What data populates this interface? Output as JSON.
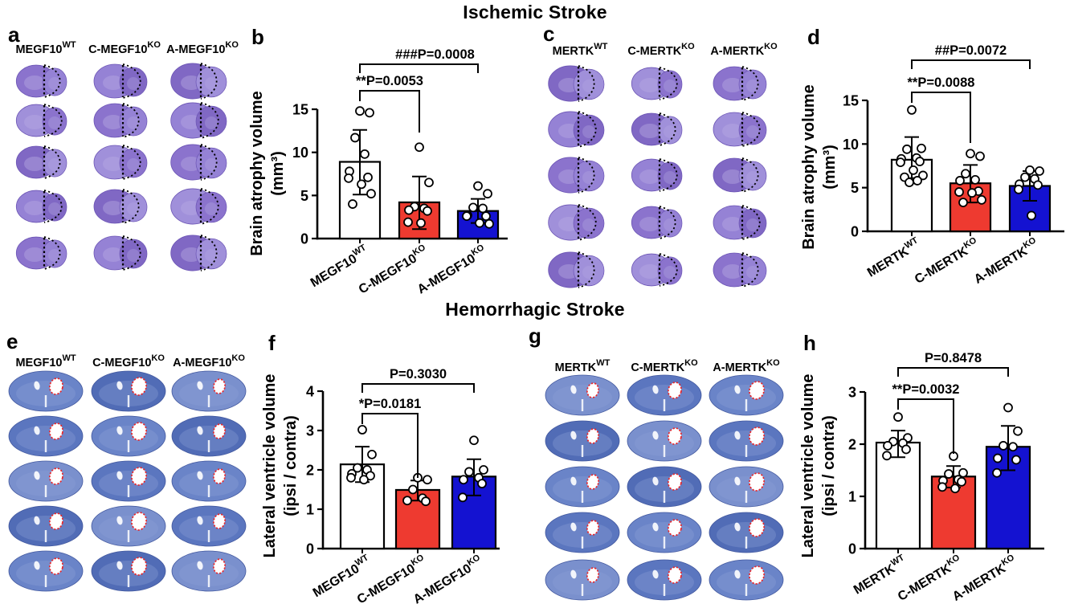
{
  "figure": {
    "title_ischemic": "Ischemic Stroke",
    "title_hemorrhagic": "Hemorrhagic Stroke"
  },
  "colors": {
    "bar_white": "#ffffff",
    "bar_red": "#ee3a30",
    "bar_blue": "#1412d1",
    "axis_black": "#000000",
    "ischemic_stain_purple": "#8b73cd",
    "hemorrhagic_stain_blue": "#5b76bf",
    "ventricle_outline_red": "#e8262a"
  },
  "image_panels": [
    {
      "letter": "a",
      "stain": "ischemic",
      "stain_color": "#8b73cd",
      "rows": 5,
      "columns": [
        {
          "base": "MEGF10",
          "sup": "WT"
        },
        {
          "base": "C-MEGF10",
          "sup": "KO"
        },
        {
          "base": "A-MEGF10",
          "sup": "KO"
        }
      ]
    },
    {
      "letter": "c",
      "stain": "ischemic",
      "stain_color": "#8b73cd",
      "rows": 5,
      "columns": [
        {
          "base": "MERTK",
          "sup": "WT"
        },
        {
          "base": "C-MERTK",
          "sup": "KO"
        },
        {
          "base": "A-MERTK",
          "sup": "KO"
        }
      ]
    },
    {
      "letter": "e",
      "stain": "hemorrhagic",
      "stain_color": "#5b76bf",
      "rows": 5,
      "columns": [
        {
          "base": "MEGF10",
          "sup": "WT"
        },
        {
          "base": "C-MEGF10",
          "sup": "KO"
        },
        {
          "base": "A-MEGF10",
          "sup": "KO"
        }
      ]
    },
    {
      "letter": "g",
      "stain": "hemorrhagic",
      "stain_color": "#5b76bf",
      "rows": 5,
      "columns": [
        {
          "base": "MERTK",
          "sup": "WT"
        },
        {
          "base": "C-MERTK",
          "sup": "KO"
        },
        {
          "base": "A-MERTK",
          "sup": "KO"
        }
      ]
    }
  ],
  "chart_data": [
    {
      "letter": "b",
      "type": "bar",
      "title": "",
      "xlabel": "",
      "ylabel": "Brain atrophy volume (mm³)",
      "ylabel_lines": [
        "Brain atrophy volume",
        "(mm³)"
      ],
      "ylim": [
        0,
        15
      ],
      "yticks": [
        0,
        5,
        10,
        15
      ],
      "grid": false,
      "categories": [
        {
          "base": "MEGF10",
          "sup": "WT"
        },
        {
          "base": "C-MEGF10",
          "sup": "KO"
        },
        {
          "base": "A-MEGF10",
          "sup": "KO"
        }
      ],
      "bars": [
        {
          "name": "MEGF10 WT",
          "color": "#ffffff",
          "value": 8.9,
          "err_low": 5.1,
          "err_high": 12.6,
          "points": [
            14.8,
            14.6,
            11.7,
            9.8,
            7.8,
            7.1,
            7.0,
            6.3,
            5.2,
            4.0
          ]
        },
        {
          "name": "C-MEGF10 KO",
          "color": "#ee3a30",
          "value": 4.2,
          "err_low": 1.1,
          "err_high": 7.2,
          "points": [
            10.6,
            6.5,
            3.7,
            3.5,
            3.3,
            3.2,
            1.9,
            1.8
          ]
        },
        {
          "name": "A-MEGF10 KO",
          "color": "#1412d1",
          "value": 3.2,
          "err_low": 1.8,
          "err_high": 4.6,
          "points": [
            6.1,
            5.2,
            3.6,
            3.5,
            2.7,
            2.6,
            2.6,
            1.8,
            1.7
          ]
        }
      ],
      "significance": [
        {
          "pair": [
            0,
            2
          ],
          "label": "###P=0.0008"
        },
        {
          "pair": [
            0,
            1
          ],
          "label": "**P=0.0053"
        }
      ]
    },
    {
      "letter": "d",
      "type": "bar",
      "title": "",
      "xlabel": "",
      "ylabel": "Brain atrophy volume (mm³)",
      "ylabel_lines": [
        "Brain atrophy volume",
        "(mm³)"
      ],
      "ylim": [
        0,
        15
      ],
      "yticks": [
        0,
        5,
        10,
        15
      ],
      "grid": false,
      "categories": [
        {
          "base": "MERTK",
          "sup": "WT"
        },
        {
          "base": "C-MERTK",
          "sup": "KO"
        },
        {
          "base": "A-MERTK",
          "sup": "KO"
        }
      ],
      "bars": [
        {
          "name": "MERTK WT",
          "color": "#ffffff",
          "value": 8.2,
          "err_low": 6.1,
          "err_high": 10.8,
          "points": [
            13.9,
            9.5,
            9.4,
            8.4,
            8.3,
            8.0,
            7.9,
            7.0,
            6.4,
            6.2,
            5.8,
            5.6
          ]
        },
        {
          "name": "C-MERTK KO",
          "color": "#ee3a30",
          "value": 5.5,
          "err_low": 3.3,
          "err_high": 7.6,
          "points": [
            8.9,
            8.6,
            6.6,
            5.9,
            5.8,
            4.6,
            4.5,
            4.4,
            3.6,
            3.3
          ]
        },
        {
          "name": "A-MERTK KO",
          "color": "#1412d1",
          "value": 5.2,
          "err_low": 3.5,
          "err_high": 6.9,
          "points": [
            7.0,
            6.9,
            6.2,
            6.0,
            5.4,
            5.3,
            4.8,
            1.8
          ]
        }
      ],
      "significance": [
        {
          "pair": [
            0,
            2
          ],
          "label": "##P=0.0072"
        },
        {
          "pair": [
            0,
            1
          ],
          "label": "**P=0.0088"
        }
      ]
    },
    {
      "letter": "f",
      "type": "bar",
      "title": "",
      "xlabel": "",
      "ylabel": "Lateral ventricle volume (ipsi / contra)",
      "ylabel_lines": [
        "Lateral ventricle volume",
        "(ipsi / contra)"
      ],
      "ylim": [
        0,
        4
      ],
      "yticks": [
        0,
        1,
        2,
        3,
        4
      ],
      "grid": false,
      "categories": [
        {
          "base": "MEGF10",
          "sup": "WT"
        },
        {
          "base": "C-MEGF10",
          "sup": "KO"
        },
        {
          "base": "A-MEGF10",
          "sup": "KO"
        }
      ],
      "bars": [
        {
          "name": "MEGF10 WT",
          "color": "#ffffff",
          "value": 2.14,
          "err_low": 1.69,
          "err_high": 2.59,
          "points": [
            3.02,
            2.39,
            2.05,
            2.0,
            1.9,
            1.85,
            1.8,
            1.75
          ]
        },
        {
          "name": "C-MEGF10 KO",
          "color": "#ee3a30",
          "value": 1.49,
          "err_low": 1.22,
          "err_high": 1.73,
          "points": [
            1.8,
            1.75,
            1.5,
            1.28,
            1.22,
            1.2
          ]
        },
        {
          "name": "A-MEGF10 KO",
          "color": "#1412d1",
          "value": 1.83,
          "err_low": 1.35,
          "err_high": 2.27,
          "points": [
            2.75,
            2.0,
            1.95,
            1.8,
            1.75,
            1.65,
            1.3
          ]
        }
      ],
      "significance": [
        {
          "pair": [
            0,
            2
          ],
          "label": "P=0.3030"
        },
        {
          "pair": [
            0,
            1
          ],
          "label": "*P=0.0181"
        }
      ]
    },
    {
      "letter": "h",
      "type": "bar",
      "title": "",
      "xlabel": "",
      "ylabel": "Lateral ventricle volume (ipsi / contra)",
      "ylabel_lines": [
        "Lateral ventricle volume",
        "(ipsi / contra)"
      ],
      "ylim": [
        0,
        3
      ],
      "yticks": [
        0,
        1,
        2,
        3
      ],
      "grid": false,
      "categories": [
        {
          "base": "MERTK",
          "sup": "WT"
        },
        {
          "base": "C-MERTK",
          "sup": "KO"
        },
        {
          "base": "A-MERTK",
          "sup": "KO"
        }
      ],
      "bars": [
        {
          "name": "MERTK WT",
          "color": "#ffffff",
          "value": 2.03,
          "err_low": 1.75,
          "err_high": 2.26,
          "points": [
            2.52,
            2.12,
            2.05,
            2.02,
            1.97,
            1.9,
            1.78
          ]
        },
        {
          "name": "C-MERTK KO",
          "color": "#ee3a30",
          "value": 1.38,
          "err_low": 1.17,
          "err_high": 1.58,
          "points": [
            1.77,
            1.45,
            1.43,
            1.32,
            1.3,
            1.28,
            1.18,
            1.15
          ]
        },
        {
          "name": "A-MERTK KO",
          "color": "#1412d1",
          "value": 1.95,
          "err_low": 1.5,
          "err_high": 2.35,
          "points": [
            2.7,
            2.25,
            1.97,
            1.95,
            1.73,
            1.7,
            1.45
          ]
        }
      ],
      "significance": [
        {
          "pair": [
            0,
            2
          ],
          "label": "P=0.8478"
        },
        {
          "pair": [
            0,
            1
          ],
          "label": "**P=0.0032"
        }
      ]
    }
  ]
}
